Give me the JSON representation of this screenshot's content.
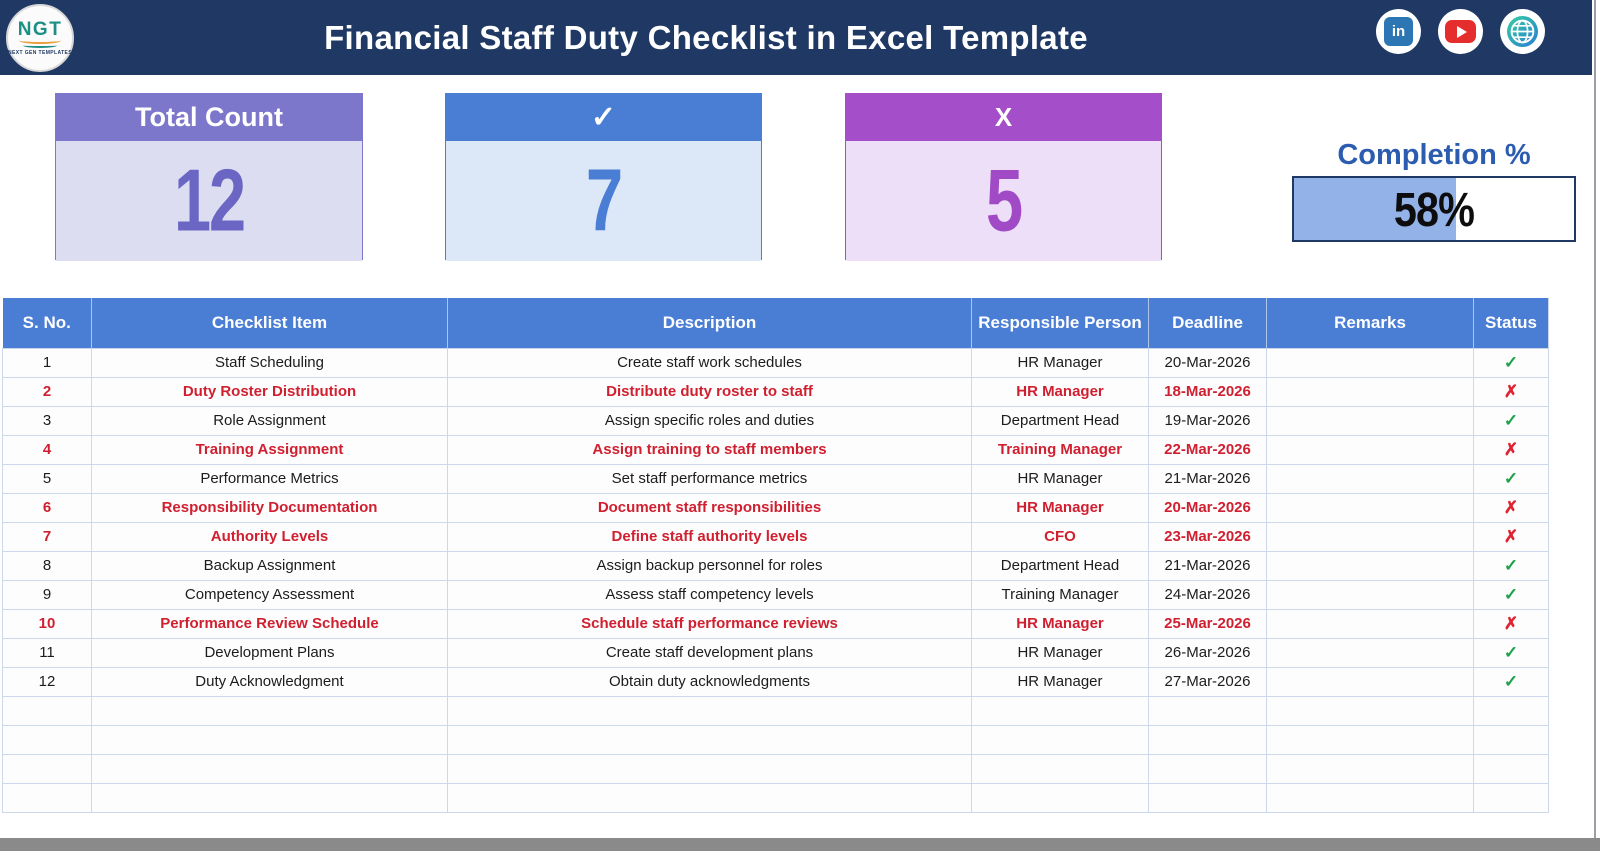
{
  "header": {
    "title": "Financial Staff Duty Checklist in Excel Template",
    "logo": {
      "text": "NGT",
      "subtext": "NEXT GEN TEMPLATES"
    },
    "social_icons": [
      {
        "name": "linkedin-icon",
        "label": "in",
        "color": "#2D76B4"
      },
      {
        "name": "youtube-icon",
        "color": "#E62D2D"
      },
      {
        "name": "website-globe-icon",
        "color": "#2B7BD6"
      }
    ],
    "banner_color": "#1F3864"
  },
  "summary": {
    "cards": [
      {
        "label": "Total Count",
        "value": "12",
        "accent": "#7C77CB"
      },
      {
        "label": "✓",
        "value": "7",
        "accent": "#4A7DD4"
      },
      {
        "label": "X",
        "value": "5",
        "accent": "#A44FC9"
      }
    ],
    "completion": {
      "label": "Completion %",
      "value": "58%",
      "percent": 58,
      "fill_color": "#93B2E7"
    }
  },
  "table": {
    "columns": [
      "S. No.",
      "Checklist Item",
      "Description",
      "Responsible Person",
      "Deadline",
      "Remarks",
      "Status"
    ],
    "header_color": "#4A7DD4",
    "alert_text_color": "#D02030",
    "status_symbols": {
      "done": "✓",
      "missed": "✗"
    },
    "status_colors": {
      "done": "#1FA24A",
      "missed": "#E02330"
    },
    "empty_row_count": 4,
    "rows": [
      {
        "sno": "1",
        "item": "Staff Scheduling",
        "desc": "Create staff work schedules",
        "person": "HR Manager",
        "deadline": "20-Mar-2026",
        "remarks": "",
        "status": "done"
      },
      {
        "sno": "2",
        "item": "Duty Roster Distribution",
        "desc": "Distribute duty roster to staff",
        "person": "HR Manager",
        "deadline": "18-Mar-2026",
        "remarks": "",
        "status": "missed"
      },
      {
        "sno": "3",
        "item": "Role Assignment",
        "desc": "Assign specific roles and duties",
        "person": "Department Head",
        "deadline": "19-Mar-2026",
        "remarks": "",
        "status": "done"
      },
      {
        "sno": "4",
        "item": "Training Assignment",
        "desc": "Assign training to staff members",
        "person": "Training Manager",
        "deadline": "22-Mar-2026",
        "remarks": "",
        "status": "missed"
      },
      {
        "sno": "5",
        "item": "Performance Metrics",
        "desc": "Set staff performance metrics",
        "person": "HR Manager",
        "deadline": "21-Mar-2026",
        "remarks": "",
        "status": "done"
      },
      {
        "sno": "6",
        "item": "Responsibility Documentation",
        "desc": "Document staff responsibilities",
        "person": "HR Manager",
        "deadline": "20-Mar-2026",
        "remarks": "",
        "status": "missed"
      },
      {
        "sno": "7",
        "item": "Authority Levels",
        "desc": "Define staff authority levels",
        "person": "CFO",
        "deadline": "23-Mar-2026",
        "remarks": "",
        "status": "missed"
      },
      {
        "sno": "8",
        "item": "Backup Assignment",
        "desc": "Assign backup personnel for roles",
        "person": "Department Head",
        "deadline": "21-Mar-2026",
        "remarks": "",
        "status": "done"
      },
      {
        "sno": "9",
        "item": "Competency Assessment",
        "desc": "Assess staff competency levels",
        "person": "Training Manager",
        "deadline": "24-Mar-2026",
        "remarks": "",
        "status": "done"
      },
      {
        "sno": "10",
        "item": "Performance Review Schedule",
        "desc": "Schedule staff performance reviews",
        "person": "HR Manager",
        "deadline": "25-Mar-2026",
        "remarks": "",
        "status": "missed"
      },
      {
        "sno": "11",
        "item": "Development Plans",
        "desc": "Create staff development plans",
        "person": "HR Manager",
        "deadline": "26-Mar-2026",
        "remarks": "",
        "status": "done"
      },
      {
        "sno": "12",
        "item": "Duty Acknowledgment",
        "desc": "Obtain duty acknowledgments",
        "person": "HR Manager",
        "deadline": "27-Mar-2026",
        "remarks": "",
        "status": "done"
      }
    ]
  }
}
